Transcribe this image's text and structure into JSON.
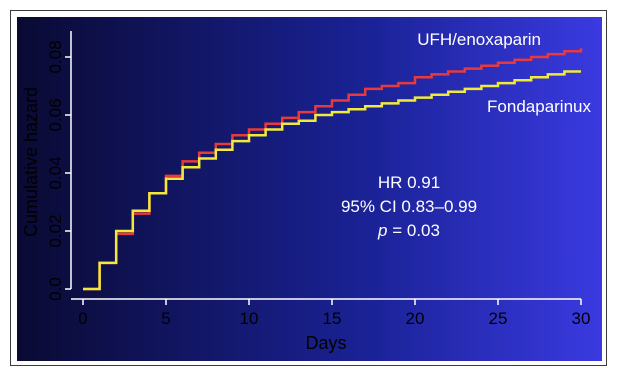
{
  "chart_data": {
    "type": "line",
    "title": "",
    "xlabel": "Days",
    "ylabel": "Cumulative hazard",
    "xlim": [
      0,
      30
    ],
    "ylim": [
      0,
      0.085
    ],
    "x_ticks": [
      0,
      5,
      10,
      15,
      20,
      25,
      30
    ],
    "y_ticks": [
      0.0,
      0.02,
      0.04,
      0.06,
      0.08
    ],
    "x_tick_labels": [
      "0",
      "5",
      "10",
      "15",
      "20",
      "25",
      "30"
    ],
    "y_tick_labels": [
      "0.0",
      "0.02",
      "0.04",
      "0.06",
      "0.08"
    ],
    "grid": false,
    "background_colors": [
      "#0a0a33",
      "#1a2296",
      "#3a3ae0"
    ],
    "series": [
      {
        "name": "UFH/enoxaparin",
        "color": "#e83a3a",
        "x": [
          0,
          1,
          2,
          3,
          4,
          5,
          6,
          7,
          8,
          9,
          10,
          11,
          12,
          13,
          14,
          15,
          16,
          17,
          18,
          19,
          20,
          21,
          22,
          23,
          24,
          25,
          26,
          27,
          28,
          29,
          30
        ],
        "y": [
          0.0,
          0.009,
          0.019,
          0.026,
          0.033,
          0.039,
          0.044,
          0.047,
          0.05,
          0.053,
          0.055,
          0.057,
          0.059,
          0.061,
          0.063,
          0.065,
          0.067,
          0.069,
          0.07,
          0.071,
          0.073,
          0.074,
          0.075,
          0.076,
          0.077,
          0.078,
          0.079,
          0.08,
          0.081,
          0.082,
          0.083
        ]
      },
      {
        "name": "Fondaparinux",
        "color": "#f2ea3a",
        "x": [
          0,
          1,
          2,
          3,
          4,
          5,
          6,
          7,
          8,
          9,
          10,
          11,
          12,
          13,
          14,
          15,
          16,
          17,
          18,
          19,
          20,
          21,
          22,
          23,
          24,
          25,
          26,
          27,
          28,
          29,
          30
        ],
        "y": [
          0.0,
          0.009,
          0.02,
          0.027,
          0.033,
          0.038,
          0.042,
          0.045,
          0.048,
          0.051,
          0.053,
          0.055,
          0.057,
          0.058,
          0.06,
          0.061,
          0.062,
          0.063,
          0.064,
          0.065,
          0.066,
          0.067,
          0.068,
          0.069,
          0.07,
          0.071,
          0.072,
          0.073,
          0.074,
          0.075,
          0.075
        ]
      }
    ],
    "annotations": {
      "hr": "HR 0.91",
      "ci": "95% CI 0.83–0.99",
      "p_symbol": "p",
      "p_value": " = 0.03"
    }
  }
}
